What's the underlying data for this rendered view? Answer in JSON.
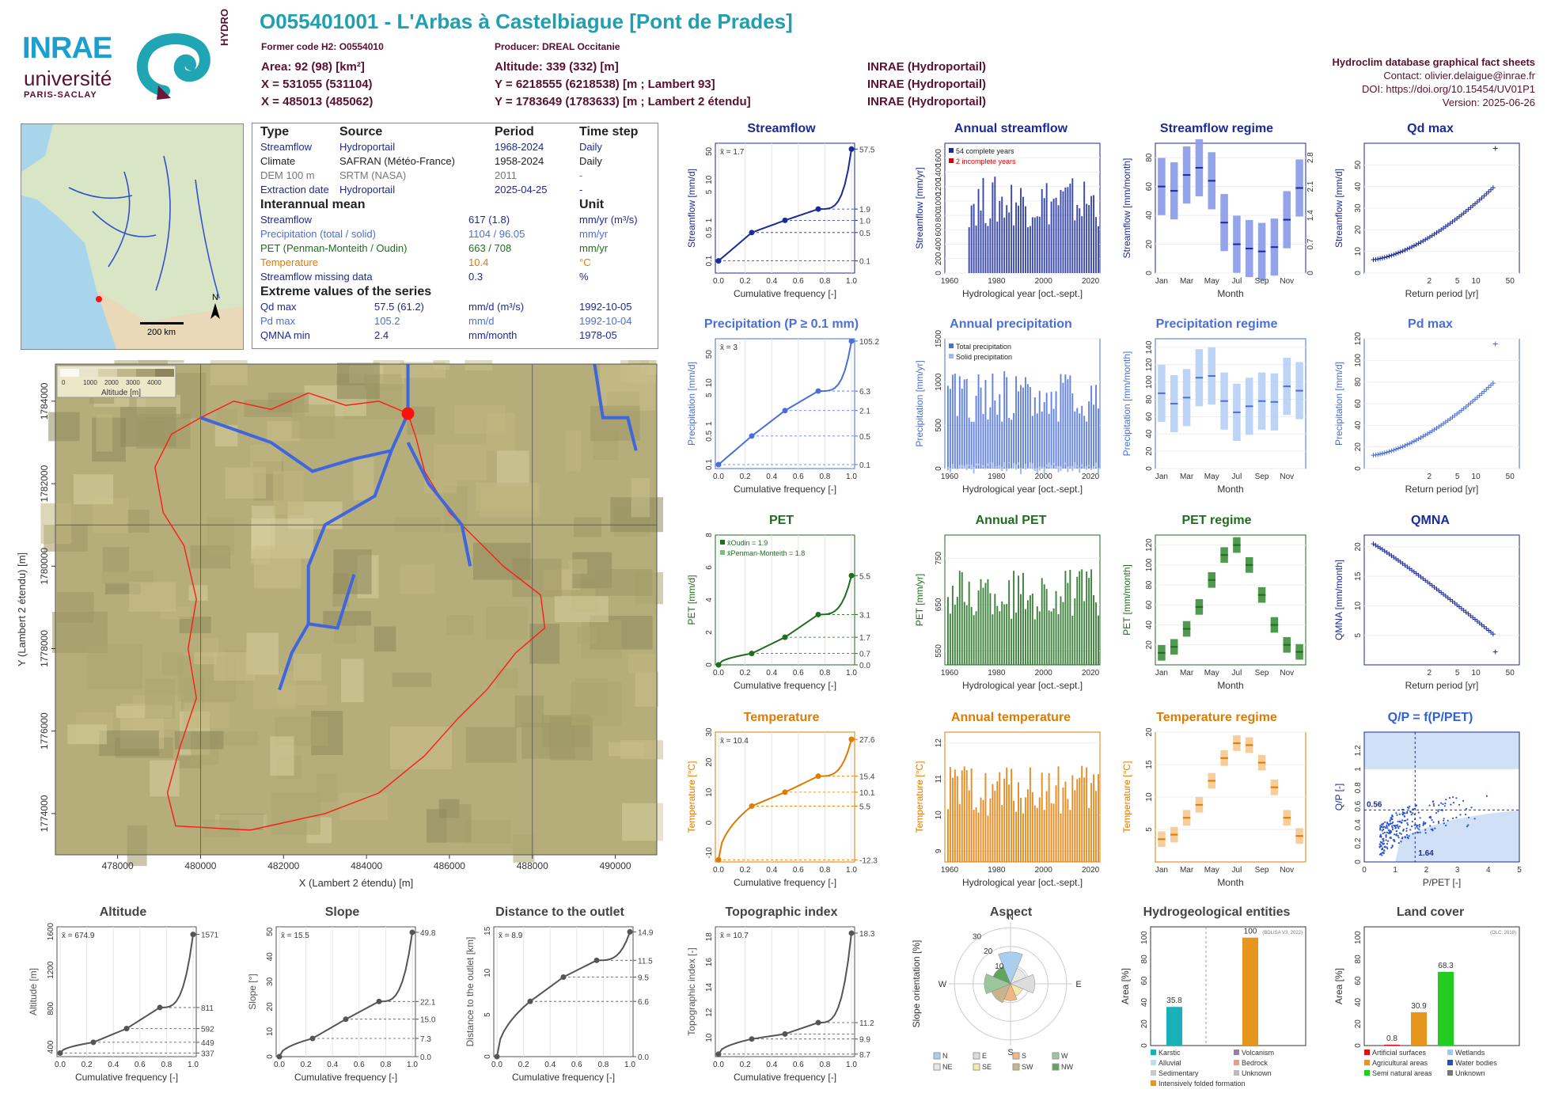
{
  "header": {
    "title": "O055401001 - L'Arbas à Castelbiague [Pont de Prades]",
    "former_code": "Former code H2: O0554010",
    "producer": "Producer: DREAL Occitanie",
    "area": "Area: 92 (98) [km²]",
    "altitude": "Altitude: 339 (332) [m]",
    "x93": "X = 531055 (531104)",
    "y93": "Y = 6218555 (6218538) [m ; Lambert 93]",
    "x2e": "X = 485013 (485062)",
    "y2e": "Y = 1783649 (1783633) [m ; Lambert 2 étendu]",
    "src1": "INRAE (Hydroportail)",
    "src2": "INRAE (Hydroportail)",
    "src3": "INRAE (Hydroportail)"
  },
  "right_info": {
    "line1": "Hydroclim database graphical fact sheets",
    "line2": "Contact: olivier.delaigue@inrae.fr",
    "line3": "DOI: https://doi.org/10.15454/UV01P1",
    "line4": "Version: 2025-06-26"
  },
  "logos": {
    "inrae": "INRAE",
    "universite": "université",
    "paris": "PARIS-SACLAY",
    "hydro": "HYDRO"
  },
  "overview_map": {
    "scale": "200 km",
    "north": "N"
  },
  "info_table": {
    "h_type": "Type",
    "h_source": "Source",
    "h_period": "Period",
    "h_timestep": "Time step",
    "rows": [
      {
        "type": "Streamflow",
        "source": "Hydroportail",
        "period": "1968-2024",
        "step": "Daily",
        "color": "#1a2a9a"
      },
      {
        "type": "Climate",
        "source": "SAFRAN (Météo-France)",
        "period": "1958-2024",
        "step": "Daily",
        "color": "#222222"
      },
      {
        "type": "DEM 100 m",
        "source": "SRTM (NASA)",
        "period": "2011",
        "step": "-",
        "color": "#777777"
      },
      {
        "type": "Extraction date",
        "source": "Hydroportail",
        "period": "2025-04-25",
        "step": "-",
        "color": "#1a2a9a"
      }
    ],
    "h_mean": "Interannual mean",
    "h_unit": "Unit",
    "mean_rows": [
      {
        "label": "Streamflow",
        "value": "617 (1.8)",
        "unit": "mm/yr (m³/s)",
        "color": "#1a2a9a"
      },
      {
        "label": "Precipitation (total / solid)",
        "value": "1104 / 96.05",
        "unit": "mm/yr",
        "color": "#4a6fd8"
      },
      {
        "label": "PET (Penman-Monteith / Oudin)",
        "value": "663 / 708",
        "unit": "mm/yr",
        "color": "#1e6e1e"
      },
      {
        "label": "Temperature",
        "value": "10.4",
        "unit": "°C",
        "color": "#e07a00"
      },
      {
        "label": "Streamflow missing data",
        "value": "0.3",
        "unit": "%",
        "color": "#1a2a9a"
      }
    ],
    "h_extreme": "Extreme values of the series",
    "extreme_rows": [
      {
        "label": "Qd max",
        "value": "57.5 (61.2)",
        "unit": "mm/d (m³/s)",
        "date": "1992-10-05",
        "color": "#1a2a9a"
      },
      {
        "label": "Pd max",
        "value": "105.2",
        "unit": "mm/d",
        "date": "1992-10-04",
        "color": "#4a6fd8"
      },
      {
        "label": "QMNA min",
        "value": "2.4",
        "unit": "mm/month",
        "date": "1978-05",
        "color": "#1a2a9a"
      }
    ]
  },
  "big_map": {
    "xlabel": "X (Lambert 2 étendu) [m]",
    "ylabel": "Y (Lambert 2 étendu) [m]",
    "xticks": [
      478000,
      480000,
      482000,
      484000,
      486000,
      488000,
      490000
    ],
    "yticks": [
      1774000,
      1776000,
      1778000,
      1780000,
      1782000,
      1784000
    ],
    "legend_title": "Altitude [m]",
    "legend_ticks": [
      "0",
      "1000",
      "2000",
      "3000",
      "4000"
    ]
  },
  "chart_data": [
    {
      "type": "line",
      "title": "Streamflow",
      "xlabel": "Cumulative frequency [-]",
      "ylabel": "Streamflow [mm/d]",
      "color": "#1a2a9a",
      "ylog": true,
      "mean_label": "x̄ = 1.7",
      "y_right_labels": [
        "57.5",
        "1.9",
        "1.0",
        "0.5",
        "0.1"
      ],
      "x": [
        0,
        0.25,
        0.5,
        0.75,
        1.0
      ],
      "y": [
        0.1,
        0.5,
        1.0,
        1.9,
        57.5
      ],
      "ylim": [
        0.05,
        80
      ]
    },
    {
      "type": "bar",
      "title": "Annual streamflow",
      "xlabel": "Hydrological year [oct.-sept.]",
      "ylabel": "Streamflow [mm/yr]",
      "color": "#1a2a9a",
      "legend": [
        "54 complete years",
        "2 incomplete years"
      ],
      "ylim": [
        0,
        1800
      ],
      "yticks": [
        0,
        200,
        400,
        600,
        800,
        1000,
        1200,
        1400,
        1600
      ],
      "xticks": [
        1960,
        1980,
        2000,
        2020
      ],
      "xlim": [
        1958,
        2024
      ]
    },
    {
      "type": "bar",
      "title": "Streamflow regime",
      "xlabel": "Month",
      "ylabel": "Streamflow [mm/month]",
      "color": "#1a2a9a",
      "categories": [
        "Jan",
        "Feb",
        "Mar",
        "Apr",
        "May",
        "Jun",
        "Jul",
        "Aug",
        "Sep",
        "Oct",
        "Nov",
        "Dec"
      ],
      "values": [
        60,
        57,
        68,
        73,
        64,
        35,
        20,
        17,
        15,
        18,
        37,
        59
      ],
      "ylim": [
        0,
        90
      ],
      "yticks": [
        0,
        20,
        40,
        60,
        80
      ],
      "y_right_ticks": [
        "0",
        "0.7",
        "1.4",
        "2.1",
        "2.8"
      ]
    },
    {
      "type": "scatter",
      "title": "Qd max",
      "xlabel": "Return period [yr]",
      "ylabel": "Streamflow [mm/d]",
      "color": "#1a2a9a",
      "ylim": [
        0,
        60
      ],
      "yticks": [
        0,
        10,
        20,
        30,
        40,
        50
      ]
    },
    {
      "type": "line",
      "title": "Precipitation (P ≥ 0.1 mm)",
      "xlabel": "Cumulative frequency [-]",
      "ylabel": "Precipitation [mm/d]",
      "color": "#4a6fd8",
      "ylog": true,
      "mean_label": "x̄ = 3",
      "y_right_labels": [
        "105.2",
        "6.3",
        "2.1",
        "0.5",
        "0.1"
      ],
      "x": [
        0,
        0.25,
        0.5,
        0.75,
        1.0
      ],
      "y": [
        0.1,
        0.5,
        2.1,
        6.3,
        105.2
      ],
      "ylim": [
        0.08,
        120
      ]
    },
    {
      "type": "bar",
      "title": "Annual precipitation",
      "xlabel": "Hydrological year [oct.-sept.]",
      "ylabel": "Precipitation [mm/yr]",
      "color": "#4a6fd8",
      "legend": [
        "Total precipitation",
        "Solid precipitation"
      ],
      "ylim": [
        0,
        1500
      ],
      "yticks": [
        0,
        500,
        1000,
        1500
      ],
      "xticks": [
        1960,
        1980,
        2000,
        2020
      ],
      "xlim": [
        1958,
        2024
      ]
    },
    {
      "type": "bar",
      "title": "Precipitation regime",
      "xlabel": "Month",
      "ylabel": "Precipitation [mm/month]",
      "color": "#4a6fd8",
      "categories": [
        "Jan",
        "Feb",
        "Mar",
        "Apr",
        "May",
        "Jun",
        "Jul",
        "Aug",
        "Sep",
        "Oct",
        "Nov",
        "Dec"
      ],
      "values": [
        87,
        75,
        82,
        105,
        107,
        78,
        65,
        72,
        78,
        77,
        95,
        90
      ],
      "ylim": [
        0,
        150
      ],
      "yticks": [
        0,
        20,
        40,
        60,
        80,
        100,
        120,
        140
      ]
    },
    {
      "type": "scatter",
      "title": "Pd max",
      "xlabel": "Return period [yr]",
      "ylabel": "Precipitation [mm/d]",
      "color": "#4a6fd8",
      "ylim": [
        0,
        120
      ],
      "yticks": [
        0,
        20,
        40,
        60,
        80,
        100,
        120
      ]
    },
    {
      "type": "line",
      "title": "PET",
      "xlabel": "Cumulative frequency [-]",
      "ylabel": "PET [mm/d]",
      "color": "#1e6e1e",
      "mean_labels": [
        "x̄Oudin = 1.9",
        "x̄Penman-Monteith = 1.8"
      ],
      "y_right_labels": [
        "5.5",
        "3.1",
        "1.7",
        "0.7",
        "0.0"
      ],
      "x": [
        0,
        0.25,
        0.5,
        0.75,
        1.0
      ],
      "y": [
        0.0,
        0.7,
        1.7,
        3.1,
        5.5
      ],
      "ylim": [
        0,
        8
      ]
    },
    {
      "type": "bar",
      "title": "Annual PET",
      "xlabel": "Hydrological year [oct.-sept.]",
      "ylabel": "PET [mm/yr]",
      "color": "#1e6e1e",
      "ylim": [
        520,
        800
      ],
      "yticks": [
        550,
        650,
        750
      ],
      "xticks": [
        1960,
        1980,
        2000,
        2020
      ],
      "xlim": [
        1958,
        2024
      ]
    },
    {
      "type": "bar",
      "title": "PET regime",
      "xlabel": "Month",
      "ylabel": "PET [mm/month]",
      "color": "#1e6e1e",
      "categories": [
        "Jan",
        "Feb",
        "Mar",
        "Apr",
        "May",
        "Jun",
        "Jul",
        "Aug",
        "Sep",
        "Oct",
        "Nov",
        "Dec"
      ],
      "values": [
        12,
        18,
        36,
        58,
        85,
        110,
        120,
        100,
        70,
        40,
        20,
        13
      ],
      "ylim": [
        0,
        130
      ],
      "yticks": [
        20,
        40,
        60,
        80,
        100,
        120
      ]
    },
    {
      "type": "scatter",
      "title": "QMNA",
      "xlabel": "Return period [yr]",
      "ylabel": "QMNA [mm/month]",
      "color": "#1a2a9a",
      "ylim": [
        0,
        22
      ],
      "yticks": [
        5,
        10,
        15,
        20
      ]
    },
    {
      "type": "line",
      "title": "Temperature",
      "xlabel": "Cumulative frequency [-]",
      "ylabel": "Temperature [°C]",
      "color": "#e07a00",
      "mean_label": "x̄ = 10.4",
      "y_right_labels": [
        "27.6",
        "15.4",
        "10.1",
        "5.5",
        "-12.3"
      ],
      "x": [
        0,
        0.25,
        0.5,
        0.75,
        1.0
      ],
      "y": [
        -12.3,
        5.5,
        10.1,
        15.4,
        27.6
      ],
      "ylim": [
        -13,
        30
      ]
    },
    {
      "type": "bar",
      "title": "Annual temperature",
      "xlabel": "Hydrological year [oct.-sept.]",
      "ylabel": "Temperature [°C]",
      "color": "#e07a00",
      "ylim": [
        8.7,
        12.3
      ],
      "yticks": [
        9.0,
        10.0,
        11.0,
        12.0
      ],
      "xticks": [
        1960,
        1980,
        2000,
        2020
      ],
      "xlim": [
        1958,
        2024
      ]
    },
    {
      "type": "bar",
      "title": "Temperature regime",
      "xlabel": "Month",
      "ylabel": "Temperature [°C]",
      "color": "#e07a00",
      "categories": [
        "Jan",
        "Feb",
        "Mar",
        "Apr",
        "May",
        "Jun",
        "Jul",
        "Aug",
        "Sep",
        "Oct",
        "Nov",
        "Dec"
      ],
      "values": [
        3.5,
        4.2,
        6.8,
        8.8,
        12.5,
        16,
        18.3,
        18,
        15.3,
        11.5,
        6.8,
        4
      ],
      "ylim": [
        0,
        20
      ],
      "yticks": [
        5,
        10,
        15,
        20
      ]
    },
    {
      "type": "scatter",
      "title": "Q/P = f(P/PET)",
      "xlabel": "P/PET [-]",
      "ylabel": "Q/P [-]",
      "color": "#3060d8",
      "annotations": [
        "0.56",
        "1.64"
      ],
      "xlim": [
        0,
        5
      ],
      "ylim": [
        0,
        1.4
      ],
      "xticks": [
        0,
        1,
        2,
        3,
        4,
        5
      ],
      "yticks": [
        0,
        0.2,
        0.4,
        0.6,
        0.8,
        1.0,
        1.2
      ]
    },
    {
      "type": "line",
      "title": "Altitude",
      "xlabel": "Cumulative frequency [-]",
      "ylabel": "Altitude [m]",
      "color": "#555555",
      "mean_label": "x̄ = 674.9",
      "y_right_labels": [
        "1571",
        "811",
        "592",
        "449",
        "337"
      ],
      "x": [
        0,
        0.25,
        0.5,
        0.75,
        1.0
      ],
      "y": [
        337,
        449,
        592,
        811,
        1571
      ],
      "ylim": [
        300,
        1650
      ],
      "yticks": [
        400,
        800,
        1200,
        1600
      ]
    },
    {
      "type": "line",
      "title": "Slope",
      "xlabel": "Cumulative frequency [-]",
      "ylabel": "Slope [°]",
      "color": "#555555",
      "mean_label": "x̄ = 15.5",
      "y_right_labels": [
        "49.8",
        "22.1",
        "15.0",
        "7.3",
        "0.0"
      ],
      "x": [
        0,
        0.25,
        0.5,
        0.75,
        1.0
      ],
      "y": [
        0,
        7.3,
        15.0,
        22.1,
        49.8
      ],
      "ylim": [
        0,
        52
      ],
      "yticks": [
        0,
        10,
        20,
        30,
        40,
        50
      ]
    },
    {
      "type": "line",
      "title": "Distance to the outlet",
      "xlabel": "Cumulative frequency [-]",
      "ylabel": "Distance to the outlet [km]",
      "color": "#555555",
      "mean_label": "x̄ = 8.9",
      "y_right_labels": [
        "14.9",
        "11.5",
        "9.5",
        "6.6",
        "0.0"
      ],
      "x": [
        0,
        0.25,
        0.5,
        0.75,
        1.0
      ],
      "y": [
        0,
        6.6,
        9.5,
        11.5,
        14.9
      ],
      "ylim": [
        0,
        15.5
      ],
      "yticks": [
        0,
        5,
        10,
        15
      ]
    },
    {
      "type": "line",
      "title": "Topographic index",
      "xlabel": "Cumulative frequency [-]",
      "ylabel": "Topographic index [-]",
      "color": "#555555",
      "mean_label": "x̄ = 10.7",
      "y_right_labels": [
        "18.3",
        "11.2",
        "9.9",
        "8.7"
      ],
      "x": [
        0,
        0.25,
        0.5,
        0.75,
        1.0
      ],
      "y": [
        8.7,
        9.9,
        10.3,
        11.2,
        18.3
      ],
      "ylim": [
        8.5,
        18.8
      ],
      "yticks": [
        10,
        12,
        14,
        16,
        18
      ]
    },
    {
      "type": "pie",
      "title": "Aspect",
      "ylabel": "Slope orientation [%]",
      "rings": [
        "10",
        "20",
        "30"
      ],
      "categories": [
        "N",
        "NE",
        "E",
        "SE",
        "S",
        "SW",
        "W",
        "NW"
      ],
      "cat_labels": [
        "N",
        "E",
        "S",
        "W"
      ],
      "values": [
        17,
        9,
        13,
        7,
        9,
        11,
        14,
        10
      ],
      "colors": [
        "#a9cfee",
        "#e8e8e8",
        "#dcdcdc",
        "#f3e9a8",
        "#f2b583",
        "#c9b48e",
        "#9cc79c",
        "#5fa55f"
      ],
      "legend": [
        "N",
        "E",
        "S",
        "W",
        "NE",
        "SE",
        "SW",
        "NW"
      ]
    },
    {
      "type": "bar",
      "title": "Hydrogeological entities",
      "ylabel": "Area [%]",
      "source": "(BDLISA V3, 2022)",
      "categories": [
        "Karstic",
        "Intensively folded formation"
      ],
      "values": [
        35.8,
        100
      ],
      "colors": [
        "#1ab0b8",
        "#e6961c"
      ],
      "ylim": [
        0,
        110
      ],
      "yticks": [
        0,
        20,
        40,
        60,
        80,
        100
      ],
      "legend": [
        "Karstic",
        "Volcanism",
        "Alluvial",
        "Bedrock",
        "Sedimentary",
        "Unknown",
        "Intensively folded formation"
      ],
      "legend_colors": [
        "#1ab0b8",
        "#9a7bb0",
        "#b8e0f0",
        "#e8a080",
        "#c8c8c8",
        "#bbbbbb",
        "#e6961c"
      ]
    },
    {
      "type": "bar",
      "title": "Land cover",
      "ylabel": "Area [%]",
      "source": "(OLC, 2018)",
      "categories": [
        "Artificial surfaces",
        "Agricultural areas",
        "Semi natural areas"
      ],
      "values": [
        0.8,
        30.9,
        68.3
      ],
      "colors": [
        "#e01010",
        "#e6961c",
        "#22cc22"
      ],
      "ylim": [
        0,
        110
      ],
      "yticks": [
        0,
        20,
        40,
        60,
        80,
        100
      ],
      "legend": [
        "Artificial surfaces",
        "Wetlands",
        "Agricultural areas",
        "Water bodies",
        "Semi natural areas",
        "Unknown"
      ],
      "legend_colors": [
        "#e01010",
        "#a0c8e8",
        "#e6961c",
        "#2050c8",
        "#22cc22",
        "#777777"
      ]
    }
  ]
}
